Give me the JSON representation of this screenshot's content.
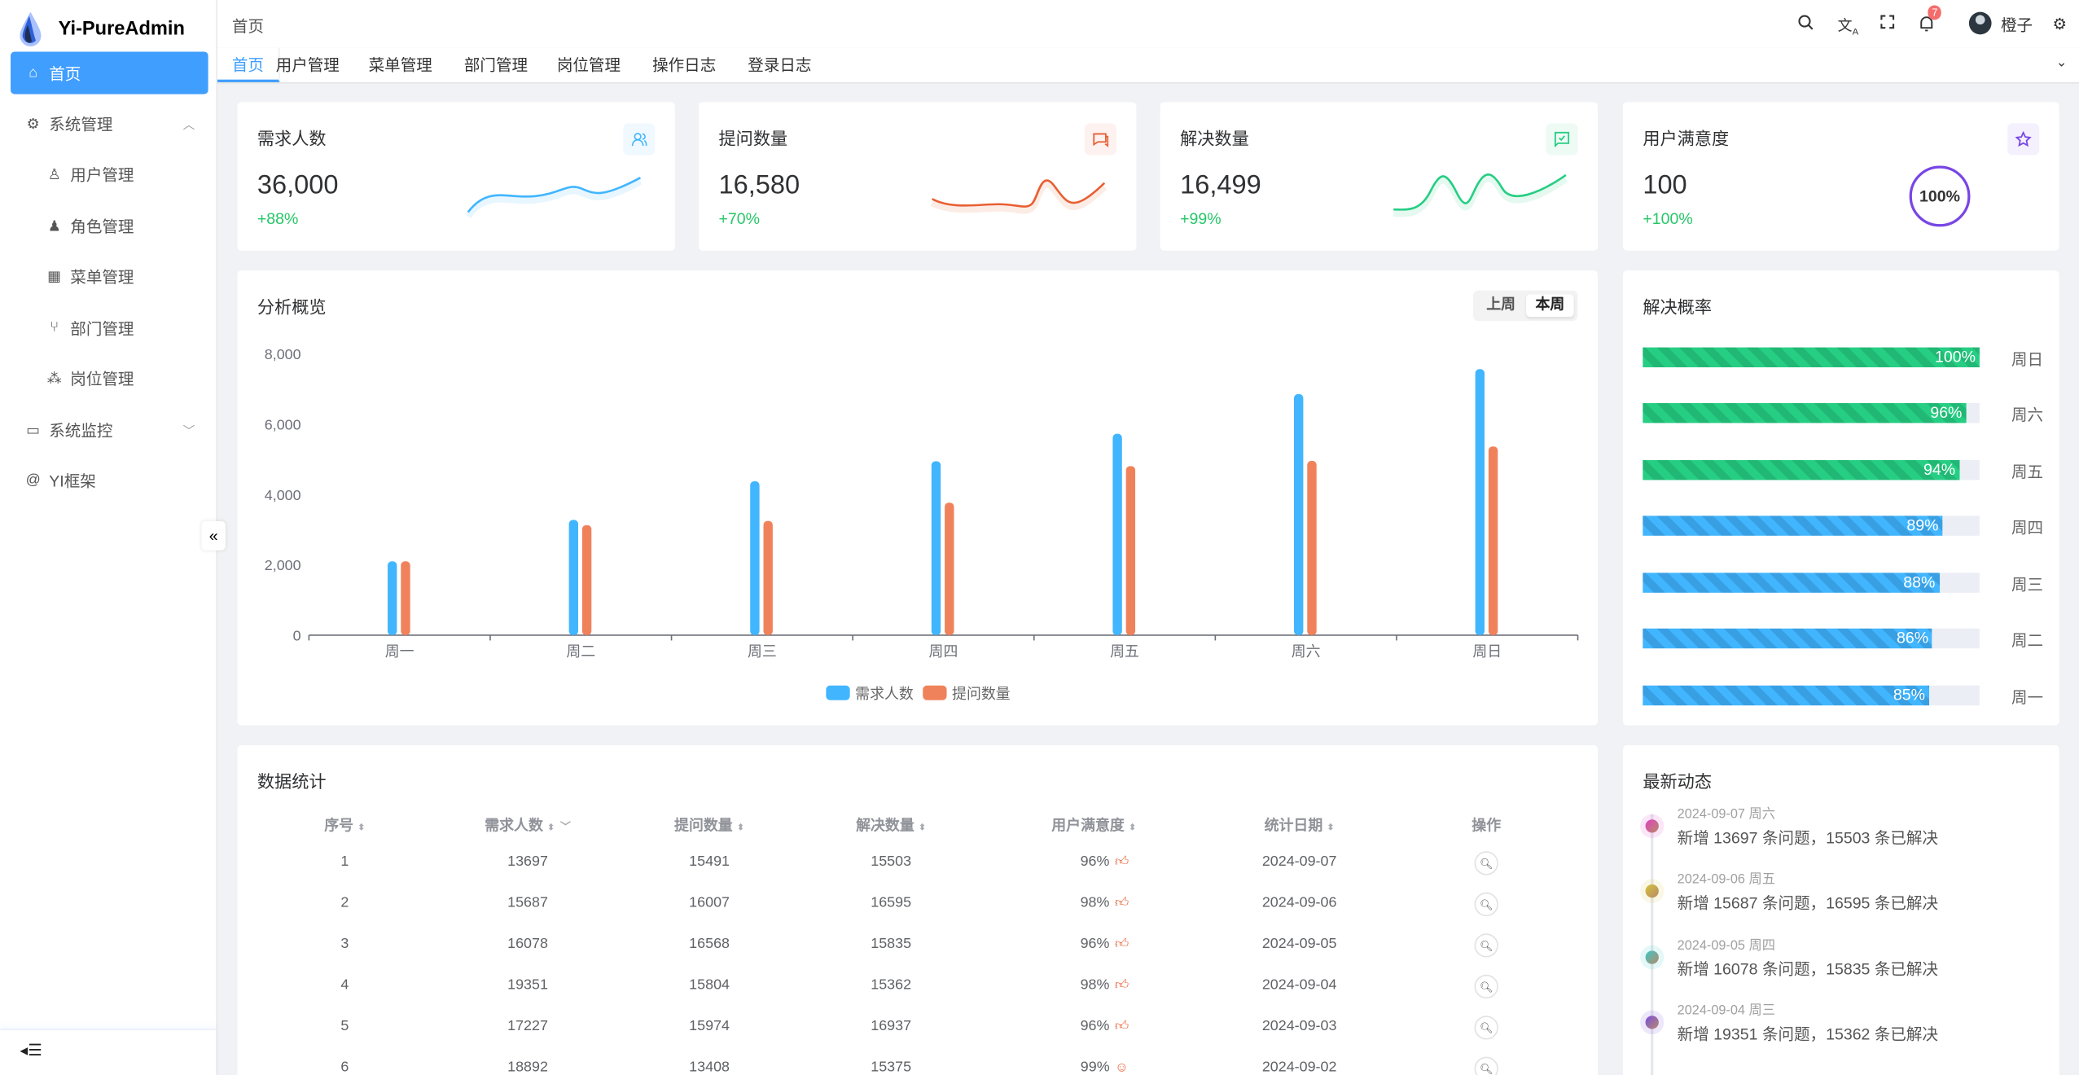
{
  "app": {
    "title": "Yi-PureAdmin"
  },
  "sidebar": {
    "items": [
      {
        "label": "首页",
        "icon": "home-icon",
        "active": true
      },
      {
        "label": "系统管理",
        "icon": "gear-icon",
        "expanded": true
      },
      {
        "label": "用户管理",
        "icon": "user-icon"
      },
      {
        "label": "角色管理",
        "icon": "role-icon"
      },
      {
        "label": "菜单管理",
        "icon": "grid-icon"
      },
      {
        "label": "部门管理",
        "icon": "branch-icon"
      },
      {
        "label": "岗位管理",
        "icon": "org-icon"
      },
      {
        "label": "系统监控",
        "icon": "monitor-icon",
        "expanded": false
      },
      {
        "label": "YI框架",
        "icon": "at-icon"
      }
    ]
  },
  "header": {
    "breadcrumb": "首页",
    "notification_count": "7",
    "username": "橙子"
  },
  "tabs": [
    "首页",
    "用户管理",
    "菜单管理",
    "部门管理",
    "岗位管理",
    "操作日志",
    "登录日志"
  ],
  "stats": [
    {
      "title": "需求人数",
      "value": "36,000",
      "change": "+88%",
      "color": "#41b6ff",
      "icon": "users-icon"
    },
    {
      "title": "提问数量",
      "value": "16,580",
      "change": "+70%",
      "color": "#e85f33",
      "icon": "chat-icon"
    },
    {
      "title": "解决数量",
      "value": "16,499",
      "change": "+99%",
      "color": "#26ce83",
      "icon": "check-message-icon"
    },
    {
      "title": "用户满意度",
      "value": "100",
      "change": "+100%",
      "color": "#7846e5",
      "icon": "star-icon",
      "ring": "100%"
    }
  ],
  "overview": {
    "title": "分析概览",
    "segments": [
      "上周",
      "本周"
    ],
    "selected": "本周"
  },
  "chart_data": {
    "type": "bar",
    "categories": [
      "周一",
      "周二",
      "周三",
      "周四",
      "周五",
      "周六",
      "周日"
    ],
    "series": [
      {
        "name": "需求人数",
        "color": "#41b6ff",
        "values": [
          2100,
          3280,
          4380,
          4950,
          5730,
          6860,
          7570
        ]
      },
      {
        "name": "提问数量",
        "color": "#f0825b",
        "values": [
          2100,
          3130,
          3250,
          3770,
          4810,
          4960,
          5370
        ]
      }
    ],
    "yticks": [
      "0",
      "2,000",
      "4,000",
      "6,000",
      "8,000"
    ],
    "ylim": [
      0,
      8000
    ],
    "legend": "bottom",
    "grid": false
  },
  "resolve": {
    "title": "解决概率",
    "items": [
      {
        "day": "周日",
        "percent": 100,
        "label": "100%",
        "color": "#26ce83"
      },
      {
        "day": "周六",
        "percent": 96,
        "label": "96%",
        "color": "#26ce83"
      },
      {
        "day": "周五",
        "percent": 94,
        "label": "94%",
        "color": "#26ce83"
      },
      {
        "day": "周四",
        "percent": 89,
        "label": "89%",
        "color": "#41b6ff"
      },
      {
        "day": "周三",
        "percent": 88,
        "label": "88%",
        "color": "#41b6ff"
      },
      {
        "day": "周二",
        "percent": 86,
        "label": "86%",
        "color": "#41b6ff"
      },
      {
        "day": "周一",
        "percent": 85,
        "label": "85%",
        "color": "#41b6ff"
      }
    ]
  },
  "table": {
    "title": "数据统计",
    "columns": [
      "序号",
      "需求人数",
      "提问数量",
      "解决数量",
      "用户满意度",
      "统计日期",
      "操作"
    ],
    "rows": [
      [
        "1",
        "13697",
        "15491",
        "15503",
        "96%",
        "2024-09-07"
      ],
      [
        "2",
        "15687",
        "16007",
        "16595",
        "98%",
        "2024-09-06"
      ],
      [
        "3",
        "16078",
        "16568",
        "15835",
        "96%",
        "2024-09-05"
      ],
      [
        "4",
        "19351",
        "15804",
        "15362",
        "98%",
        "2024-09-04"
      ],
      [
        "5",
        "17227",
        "15974",
        "16937",
        "96%",
        "2024-09-03"
      ],
      [
        "6",
        "18892",
        "13408",
        "15375",
        "99%",
        "2024-09-02"
      ]
    ]
  },
  "activity": {
    "title": "最新动态",
    "items": [
      {
        "date": "2024-09-07 周六",
        "text": "新增 13697 条问题，15503 条已解决",
        "color": "#e040c0"
      },
      {
        "date": "2024-09-06 周五",
        "text": "新增 15687 条问题，16595 条已解决",
        "color": "#d4c23a"
      },
      {
        "date": "2024-09-05 周四",
        "text": "新增 16078 条问题，15835 条已解决",
        "color": "#3cc8c8"
      },
      {
        "date": "2024-09-04 周三",
        "text": "新增 19351 条问题，15362 条已解决",
        "color": "#7a4de0"
      }
    ]
  }
}
